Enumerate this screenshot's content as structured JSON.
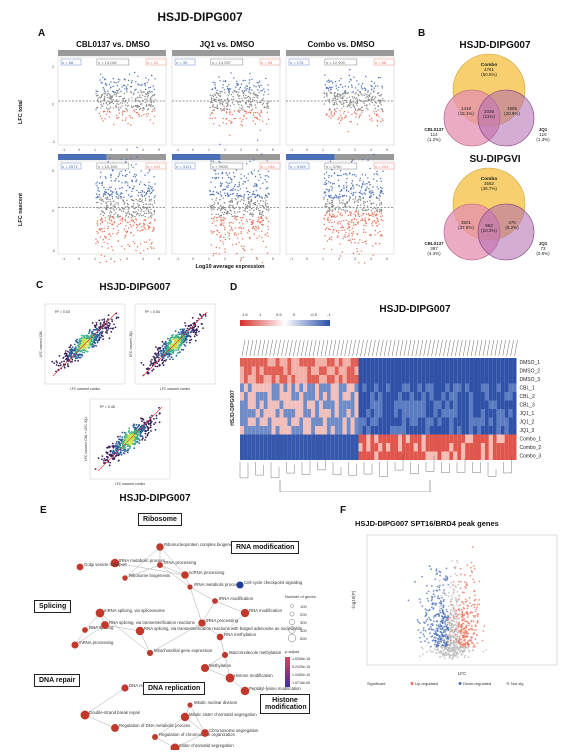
{
  "main_title": "HSJD-DIPG007",
  "panelA": {
    "letter": "A",
    "comparisons": [
      "CBL0137 vs. DMSO",
      "JQ1 vs. DMSO",
      "Combo vs. DMSO"
    ],
    "row_labels": [
      "LFC total",
      "LFC nascent"
    ],
    "x_label": "Log10 average expression",
    "total_counts": [
      [
        "n = 68",
        "n = 13,062",
        "n = 22"
      ],
      [
        "n = 30",
        "n = 13,097",
        "n = 26"
      ],
      [
        "n = 176",
        "n = 12,909",
        "n = 58"
      ]
    ],
    "nascent_counts": [
      [
        "n = 2572",
        "n = 10,393",
        "n = 191"
      ],
      [
        "n = 3121",
        "n = 9928",
        "n = 194"
      ],
      [
        "n = 9159",
        "n = 3780",
        "n = 204"
      ]
    ],
    "x_ticks": [
      "-1",
      "0",
      "1",
      "2",
      "3",
      "4",
      "5"
    ],
    "y_ticks_total": [
      "2",
      "0",
      "-2"
    ],
    "y_ticks_nascent": [
      "5",
      "0",
      "-5"
    ],
    "colors": {
      "up": "#e8735a",
      "down": "#4a6fb8",
      "ns": "#888888"
    }
  },
  "panelB": {
    "letter": "B",
    "venn1": {
      "title": "HSJD-DIPG007",
      "combo": "Combo",
      "combo_n": "4761",
      "combo_pct": "(50.5%)",
      "cbl": "CBL0137",
      "cbl_n": "114",
      "cbl_pct": "(1.2%)",
      "jq1": "JQ1",
      "jq1_n": "119",
      "jq1_pct": "(1.3%)",
      "cbl_combo": "1419",
      "cbl_combo_pct": "(15.1%)",
      "all": "1036",
      "all_pct": "(11%)",
      "jq1_combo": "1965",
      "jq1_combo_pct": "(20.9%)"
    },
    "venn2": {
      "title": "SU-DIPGVI",
      "combo": "Combo",
      "combo_n": "3582",
      "combo_pct": "(38.7%)",
      "cbl": "CBL0137",
      "cbl_n": "397",
      "cbl_pct": "(4.3%)",
      "jq1": "JQ1",
      "jq1_n": "73",
      "jq1_pct": "(0.8%)",
      "cbl_combo": "3501",
      "cbl_combo_pct": "(37.9%)",
      "all": "953",
      "all_pct": "(10.3%)",
      "jq1_combo": "478",
      "jq1_combo_pct": "(5.2%)"
    },
    "colors": {
      "combo": "#f7cf6e",
      "cbl": "#e58fb0",
      "jq1": "#b06ab0"
    }
  },
  "panelC": {
    "letter": "C",
    "title": "HSJD-DIPG007",
    "r2": [
      "R² = 0.53",
      "R² = 0.54",
      "R² = 0.48"
    ],
    "xlabels": [
      "LFC nascent combo",
      "LFC nascent combo",
      "LFC nascent combo"
    ],
    "ylabels": [
      "LFC nascent CBL",
      "LFC nascent JQ1",
      "LFC nascent CBL + LFC JQ1"
    ]
  },
  "panelD": {
    "letter": "D",
    "title": "HSJD-DIPG007",
    "side_label": "HSJD-DIPG007",
    "legend_ticks": [
      "1.5",
      "1",
      "0.5",
      "0",
      "-0.5",
      "-1"
    ],
    "row_labels": [
      "DMSO_1",
      "DMSO_2",
      "DMSO_3",
      "CBL_1",
      "CBL_2",
      "CBL_3",
      "JQ1_1",
      "JQ1_2",
      "JQ1_3",
      "Combo_1",
      "Combo_2",
      "Combo_3"
    ],
    "colors": {
      "high": "#d7302a",
      "low": "#2a4fa8",
      "mid": "#ffffff"
    }
  },
  "panelE": {
    "letter": "E",
    "title": "HSJD-DIPG007",
    "categories": [
      "Ribosome",
      "RNA modification",
      "Splicing",
      "DNA repair",
      "DNA replication",
      "Histone modification"
    ],
    "legend_size_title": "Number of genes",
    "legend_sizes": [
      "100",
      "200",
      "300",
      "400",
      "500"
    ],
    "legend_p_title": "p.adjust",
    "legend_p": [
      "1.6268e-18",
      "5.2425e-15",
      "1.0480e-10",
      "1.5718e-06"
    ],
    "nodes": [
      "Ribonucleoprotein complex biogenesis",
      "tRNA metabolic process",
      "ncRNA processing",
      "Golgi vesicle transport",
      "Ribosome biogenesis",
      "rRNA processing",
      "rRNA metabolic process",
      "Cell cycle checkpoint signaling",
      "tRNA modification",
      "RNA modification",
      "tRNA processing",
      "mRNA splicing, via spliceosome",
      "RNA splicing",
      "RNA splicing, via transesterification reactions",
      "RNA splicing, via transesterification reactions with bulged adenosine as nucleophile",
      "mRNA processing",
      "Mitochondrial gene expression",
      "RNA methylation",
      "Macromolecule methylation",
      "Methylation",
      "Histone modification",
      "Peptidyl-lysine modification",
      "DNA replication",
      "Double-strand break repair",
      "Regulation of DNA metabolic process",
      "Mitotic nuclear division",
      "Mitotic sister chromatid segregation",
      "Regulation of chromosome organization",
      "Chromosome segregation",
      "Sister chromatid segregation"
    ]
  },
  "panelF": {
    "letter": "F",
    "title": "HSJD-DIPG007 SPT16/BRD4 peak genes",
    "xlabel": "LFC",
    "ylabel": "-log10(P)",
    "legend": [
      "Significant",
      "Up-regulated",
      "Down-regulated",
      "Not sig"
    ],
    "colors": {
      "up": "#e8735a",
      "down": "#4a6fb8",
      "ns": "#bbbbbb"
    }
  }
}
